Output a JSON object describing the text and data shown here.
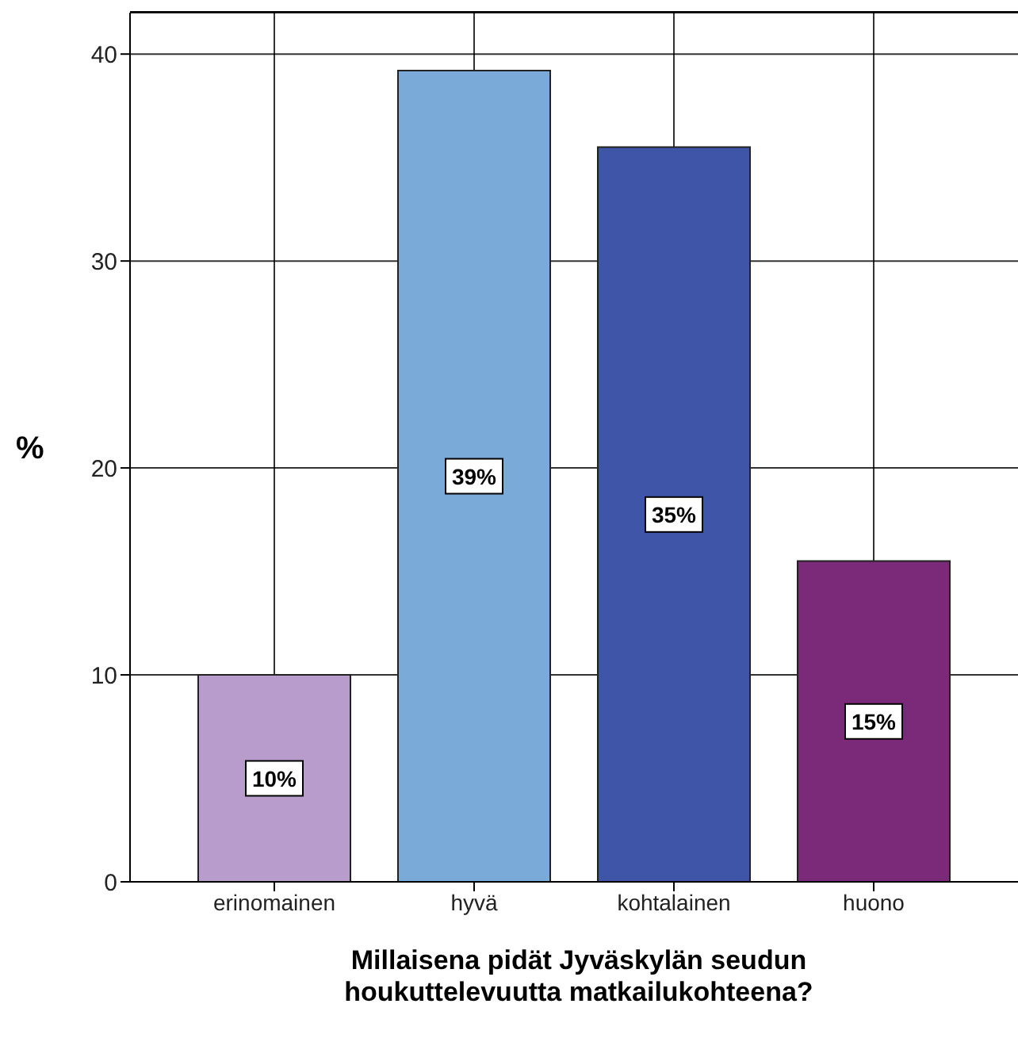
{
  "chart_data": {
    "type": "bar",
    "xlabel": "Millaisena pidät Jyväskylän seudun houkuttelevuutta matkailukohteena?",
    "ylabel": "%",
    "categories": [
      "erinomainen",
      "hyvä",
      "kohtalainen",
      "huono"
    ],
    "values": [
      10.0,
      39.2,
      35.5,
      15.5
    ],
    "colors": [
      "#b89ccb",
      "#7aaad8",
      "#3f56a8",
      "#7b2a7a"
    ],
    "value_labels": [
      "10%",
      "39%",
      "35%",
      "15%"
    ],
    "ylim": [
      0,
      42
    ],
    "yticks": [
      0,
      10,
      20,
      30,
      40
    ],
    "grid": true
  }
}
